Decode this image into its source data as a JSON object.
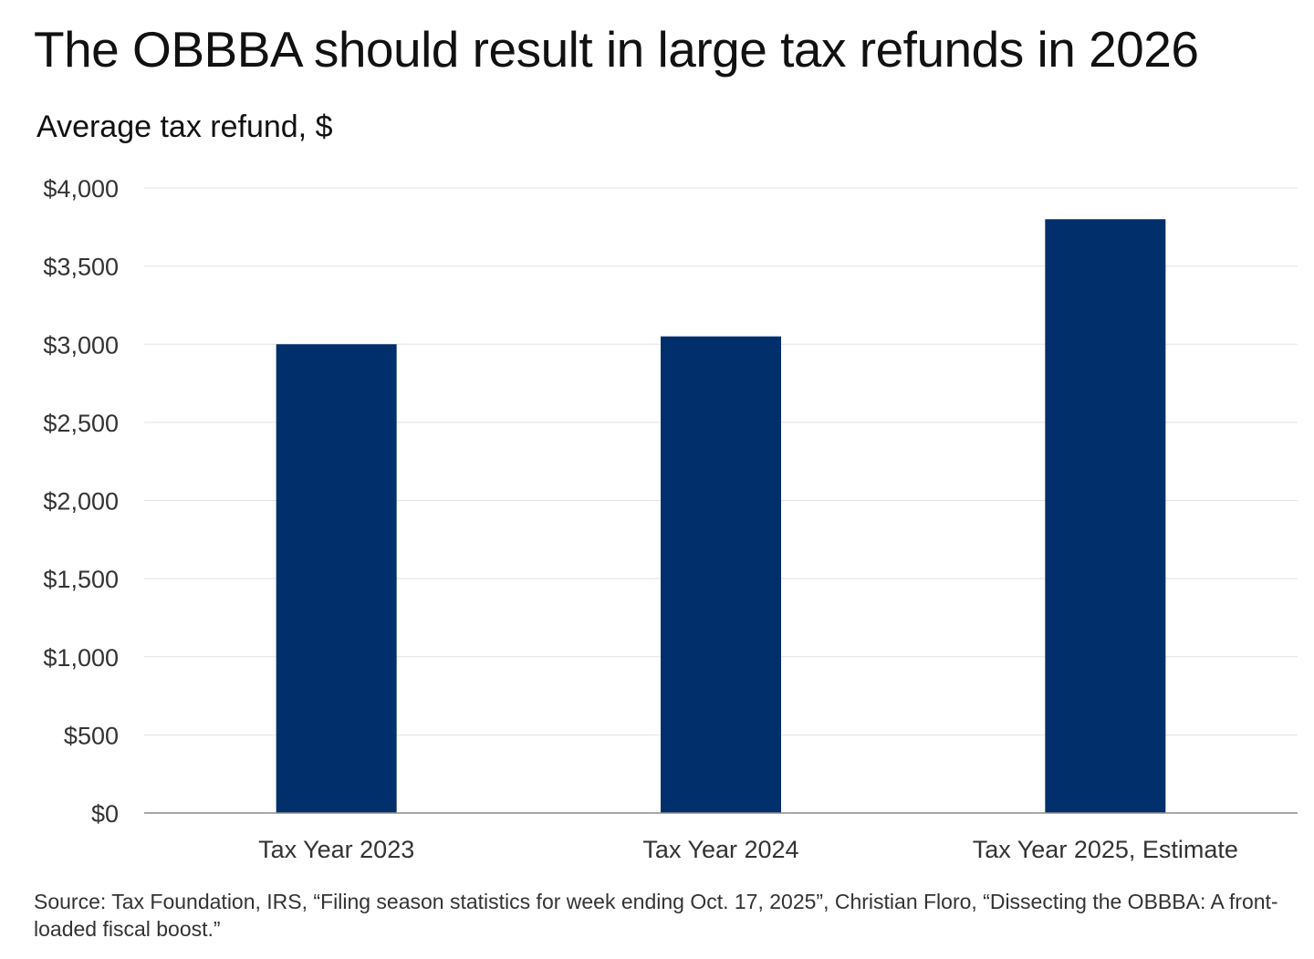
{
  "chart_data": {
    "type": "bar",
    "title": "The OBBBA should result in large tax refunds in 2026",
    "ylabel": "Average tax refund, $",
    "categories": [
      "Tax Year 2023",
      "Tax Year 2024",
      "Tax Year 2025, Estimate"
    ],
    "values": [
      3000,
      3050,
      3800
    ],
    "ylim": [
      0,
      4000
    ],
    "yticks": [
      0,
      500,
      1000,
      1500,
      2000,
      2500,
      3000,
      3500,
      4000
    ],
    "ytick_labels": [
      "$0",
      "$500",
      "$1,000",
      "$1,500",
      "$2,000",
      "$2,500",
      "$3,000",
      "$3,500",
      "$4,000"
    ],
    "grid": true,
    "legend": "none",
    "bar_color": "#002f6c",
    "grid_color": "#e3e3e3",
    "axis_color": "#8c8c8c"
  },
  "source": "Source: Tax Foundation, IRS, “Filing season statistics for week ending Oct. 17, 2025”, Christian Floro, “Dissecting the OBBBA: A front-loaded fiscal boost.”"
}
